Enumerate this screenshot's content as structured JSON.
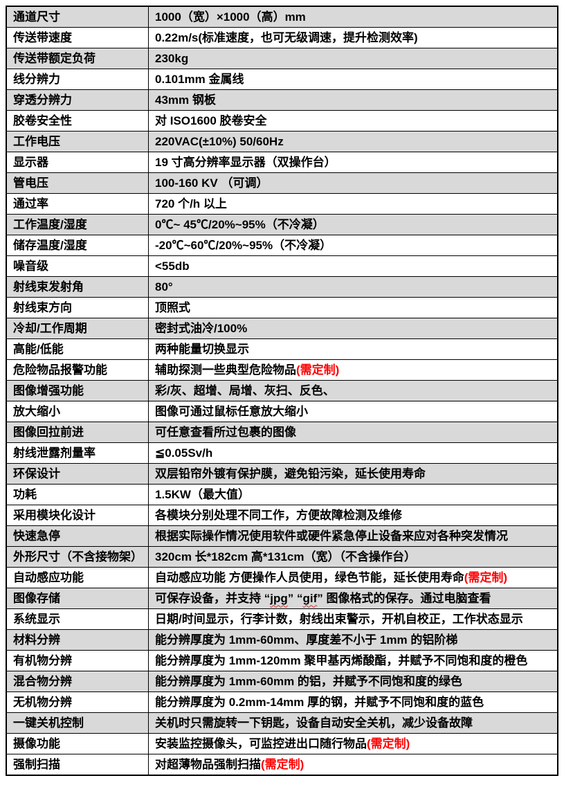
{
  "table": {
    "accent_red": "#ff0000",
    "shaded_row_bg": "#d9d9d9",
    "rows": [
      {
        "label": "通道尺寸",
        "value": "1000（宽）×1000（高）mm",
        "shaded": true
      },
      {
        "label": "传送带速度",
        "value": "0.22m/s(标准速度，也可无级调速，提升检测效率)",
        "shaded": false
      },
      {
        "label": "传送带额定负荷",
        "value": "230kg",
        "shaded": true
      },
      {
        "label": "线分辨力",
        "value": "0.101mm 金属线",
        "shaded": false
      },
      {
        "label": "穿透分辨力",
        "value": "43mm 钢板",
        "shaded": true
      },
      {
        "label": "胶卷安全性",
        "value": "对 ISO1600 胶卷安全",
        "shaded": false
      },
      {
        "label": "工作电压",
        "value": "220VAC(±10%)  50/60Hz",
        "shaded": true
      },
      {
        "label": "显示器",
        "value": "19 寸高分辨率显示器（双操作台）",
        "shaded": false
      },
      {
        "label": "管电压",
        "value": "100-160 KV （可调）",
        "shaded": true
      },
      {
        "label": "通过率",
        "value": "720 个/h 以上",
        "shaded": false
      },
      {
        "label": "工作温度/湿度",
        "value": "0℃~ 45℃/20%~95%（不冷凝）",
        "shaded": true
      },
      {
        "label": "储存温度/湿度",
        "value": "-20℃~60℃/20%~95%（不冷凝）",
        "shaded": false
      },
      {
        "label": "噪音级",
        "value": "<55db",
        "shaded": false
      },
      {
        "label": "射线束发射角",
        "value": "80°",
        "shaded": true
      },
      {
        "label": "射线束方向",
        "value": "顶照式",
        "shaded": false
      },
      {
        "label": "冷却/工作周期",
        "value": "密封式油冷/100%",
        "shaded": true
      },
      {
        "label": "高能/低能",
        "value": "两种能量切换显示",
        "shaded": false
      },
      {
        "label": "危险物品报警功能",
        "value": "辅助探测一些典型危险物品",
        "red": "(需定制)",
        "shaded": false
      },
      {
        "label": "图像增强功能",
        "value": "彩/灰、超增、局增、灰扫、反色、",
        "shaded": true
      },
      {
        "label": "放大缩小",
        "value": "图像可通过鼠标任意放大缩小",
        "shaded": false
      },
      {
        "label": "图像回拉前进",
        "value": "可任意查看所过包裹的图像",
        "shaded": true
      },
      {
        "label": "射线泄露剂量率",
        "value": "≦0.05Sv/h",
        "shaded": false
      },
      {
        "label": "环保设计",
        "value": "双层铅帘外镀有保护膜，避免铅污染，延长使用寿命",
        "shaded": true
      },
      {
        "label": "功耗",
        "value": "1.5KW（最大值）",
        "shaded": false
      },
      {
        "label": "采用模块化设计",
        "value": "各模块分别处理不同工作，方便故障检测及维修",
        "shaded": false
      },
      {
        "label": "快速急停",
        "value": "根据实际操作情况使用软件或硬件紧急停止设备来应对各种突发情况",
        "shaded": true
      },
      {
        "label": "外形尺寸（不含接物架）",
        "value": "320cm 长*182cm 高*131cm（宽）（不含操作台）",
        "shaded": true
      },
      {
        "label": "自动感应功能",
        "value": "自动感应功能 方便操作人员使用，绿色节能，延长使用寿命",
        "red": "(需定制)",
        "shaded": false
      },
      {
        "label": "图像存储",
        "seg_pre": "可保存设备，并支持 “",
        "seg_jpg": "jpg",
        "seg_mid": "” “",
        "seg_gif": "gif",
        "seg_post": "” 图像格式的保存。通过电脑查看",
        "shaded": true
      },
      {
        "label": "系统显示",
        "value": "日期/时间显示，行李计数，射线出束警示，开机自校正，工作状态显示",
        "shaded": false
      },
      {
        "label": "材料分辨",
        "value": "能分辨厚度为 1mm-60mm、厚度差不小于 1mm 的铝阶梯",
        "shaded": true
      },
      {
        "label": "有机物分辨",
        "value": "能分辨厚度为 1mm-120mm 聚甲基丙烯酸酯，并赋予不同饱和度的橙色",
        "shaded": false
      },
      {
        "label": "混合物分辨",
        "value": "能分辨厚度为 1mm-60mm 的铝，并赋予不同饱和度的绿色",
        "shaded": true
      },
      {
        "label": "无机物分辨",
        "value": "能分辨厚度为 0.2mm-14mm 厚的钢，并赋予不同饱和度的蓝色",
        "shaded": false
      },
      {
        "label": "一键关机控制",
        "value": "关机时只需旋转一下钥匙，设备自动安全关机，减少设备故障",
        "shaded": true
      },
      {
        "label": "摄像功能",
        "value": "安装监控摄像头，可监控进出口随行物品",
        "red": "(需定制)",
        "shaded": false
      },
      {
        "label": "强制扫描",
        "value": "对超薄物品强制扫描",
        "red": "(需定制)",
        "shaded": false
      }
    ]
  }
}
